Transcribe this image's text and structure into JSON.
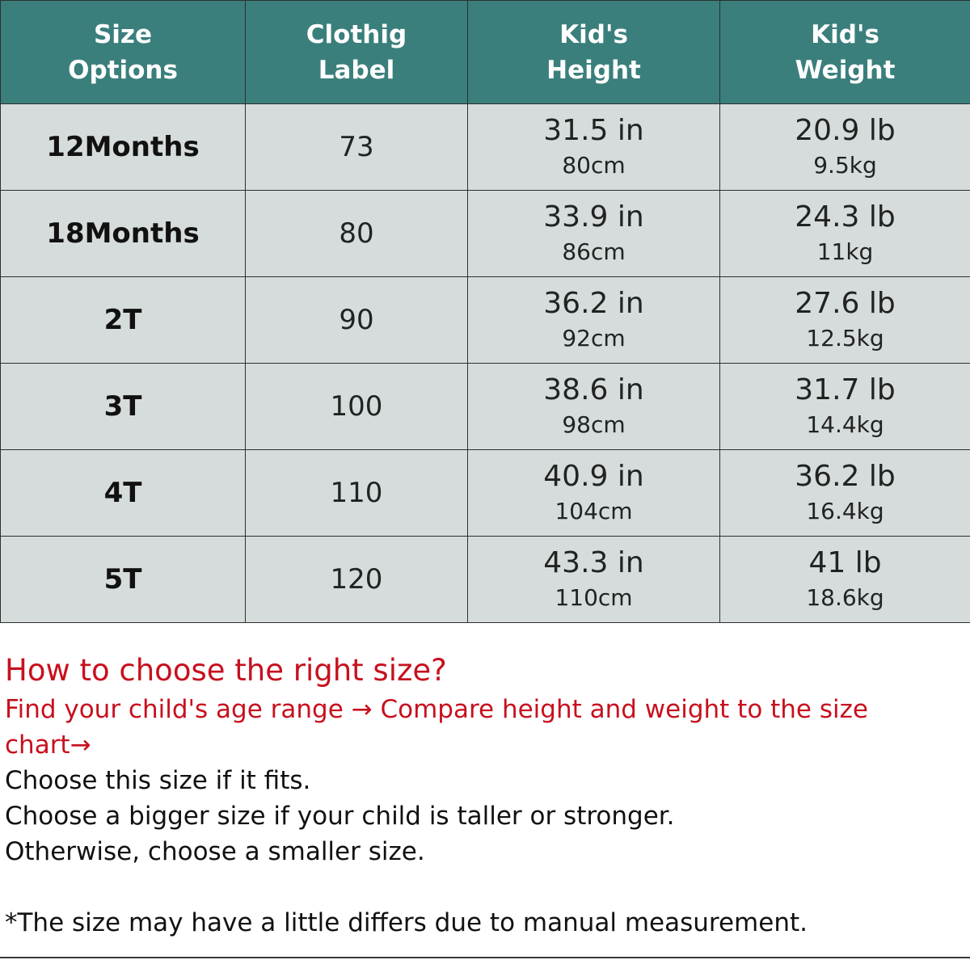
{
  "headers": [
    [
      "Size",
      "Options"
    ],
    [
      "Clothig",
      "Label"
    ],
    [
      "Kid's",
      "Height"
    ],
    [
      "Kid's",
      "Weight"
    ]
  ],
  "rows": [
    {
      "size": "12Months",
      "label": "73",
      "height_in": "31.5 in",
      "height_cm": "80cm",
      "weight_lb": "20.9 lb",
      "weight_kg": "9.5kg"
    },
    {
      "size": "18Months",
      "label": "80",
      "height_in": "33.9 in",
      "height_cm": "86cm",
      "weight_lb": "24.3 lb",
      "weight_kg": "11kg"
    },
    {
      "size": "2T",
      "label": "90",
      "height_in": "36.2 in",
      "height_cm": "92cm",
      "weight_lb": "27.6 lb",
      "weight_kg": "12.5kg"
    },
    {
      "size": "3T",
      "label": "100",
      "height_in": "38.6 in",
      "height_cm": "98cm",
      "weight_lb": "31.7 lb",
      "weight_kg": "14.4kg"
    },
    {
      "size": "4T",
      "label": "110",
      "height_in": "40.9 in",
      "height_cm": "104cm",
      "weight_lb": "36.2 lb",
      "weight_kg": "16.4kg"
    },
    {
      "size": "5T",
      "label": "120",
      "height_in": "43.3 in",
      "height_cm": "110cm",
      "weight_lb": "41 lb",
      "weight_kg": "18.6kg"
    }
  ],
  "notes": {
    "heading": "How to choose the right size?",
    "steps": [
      "Find your child's age range → Compare height and weight to the size",
      "chart→"
    ],
    "advice": [
      "Choose this size if it fits.",
      "Choose a bigger size if your child is taller or stronger.",
      "Otherwise, choose a smaller size."
    ],
    "disclaimer": "*The size  may have a little differs due to manual measurement."
  },
  "colors": {
    "header_bg": "#3a7f7c",
    "cell_bg": "#d6dcdc",
    "label_bg": "#ffffff",
    "note_red": "#c8101e"
  }
}
